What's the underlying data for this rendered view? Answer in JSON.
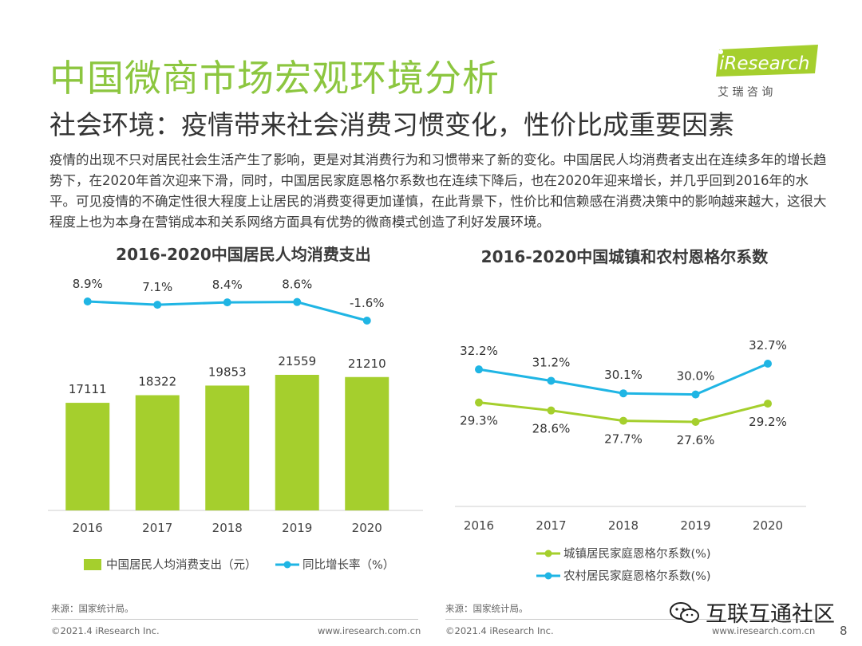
{
  "header": {
    "title": "中国微商市场宏观环境分析",
    "subtitle": "社会环境：疫情带来社会消费习惯变化，性价比成重要因素",
    "body": "疫情的出现不只对居民社会生活产生了影响，更是对其消费行为和习惯带来了新的变化。中国居民人均消费者支出在连续多年的增长趋势下，在2020年首次迎来下滑，同时，中国居民家庭恩格尔系数也在连续下降后，也在2020年迎来增长，并几乎回到2016年的水平。可见疫情的不确定性很大程度上让居民的消费变得更加谨慎，在此背景下，性价比和信赖感在消费决策中的影响越来越大，这很大程度上也为本身在营销成本和关系网络方面具有优势的微商模式创造了利好发展环境。"
  },
  "logo": {
    "brand": "iResearch",
    "cn": "艾 瑞 咨 询"
  },
  "chart_data": [
    {
      "type": "bar",
      "title": "2016-2020中国居民人均消费支出",
      "categories": [
        "2016",
        "2017",
        "2018",
        "2019",
        "2020"
      ],
      "series": [
        {
          "name": "中国居民人均消费支出（元）",
          "type": "bar",
          "values": [
            17111,
            18322,
            19853,
            21559,
            21210
          ],
          "labels": [
            "17111",
            "18322",
            "19853",
            "21559",
            "21210"
          ],
          "color": "#a5cf2d"
        },
        {
          "name": "同比增长率（%）",
          "type": "line",
          "values": [
            8.9,
            7.1,
            8.4,
            8.6,
            -1.6
          ],
          "labels": [
            "8.9%",
            "7.1%",
            "8.4%",
            "8.6%",
            "-1.6%"
          ],
          "color": "#1fb5e4"
        }
      ]
    },
    {
      "type": "line",
      "title": "2016-2020中国城镇和农村恩格尔系数",
      "categories": [
        "2016",
        "2017",
        "2018",
        "2019",
        "2020"
      ],
      "series": [
        {
          "name": "城镇居民家庭恩格尔系数(%)",
          "values": [
            29.3,
            28.6,
            27.7,
            27.6,
            29.2
          ],
          "labels": [
            "29.3%",
            "28.6%",
            "27.7%",
            "27.6%",
            "29.2%"
          ],
          "color": "#a5cf2d"
        },
        {
          "name": "农村居民家庭恩格尔系数(%)",
          "values": [
            32.2,
            31.2,
            30.1,
            30.0,
            32.7
          ],
          "labels": [
            "32.2%",
            "31.2%",
            "30.1%",
            "30.0%",
            "32.7%"
          ],
          "color": "#1fb5e4"
        }
      ]
    }
  ],
  "sources": {
    "left": "来源：国家统计局。",
    "right": "来源：国家统计局。"
  },
  "footer": {
    "copyright_left": "©2021.4 iResearch Inc.",
    "url_left": "www.iresearch.com.cn",
    "copyright_right": "©2021.4 iResearch Inc.",
    "url_right": "www.iresearch.com.cn"
  },
  "watermark": "互联互通社区",
  "page_number": "8"
}
